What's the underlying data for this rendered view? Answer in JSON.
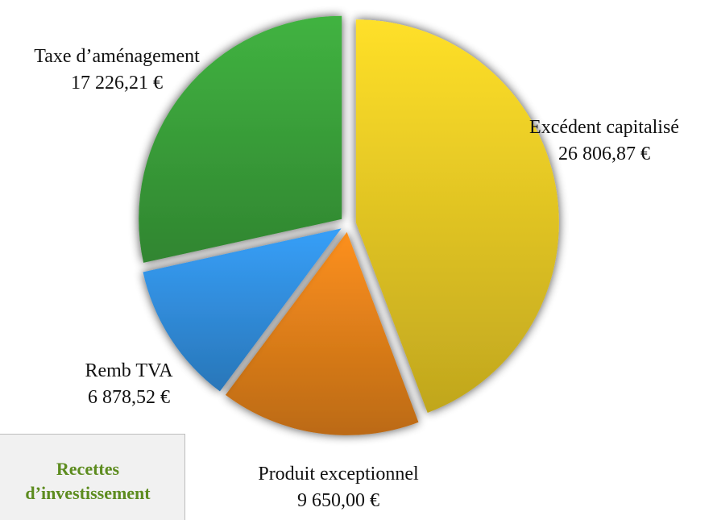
{
  "chart_data": {
    "type": "pie",
    "title": "Recettes d’investissement",
    "categories": [
      "Excédent capitalisé",
      "Produit exceptionnel",
      "Remb TVA",
      "Taxe d’aménagement"
    ],
    "values": [
      26806.87,
      9650.0,
      6878.52,
      17226.21
    ],
    "value_labels": [
      "26 806,87 €",
      "9 650,00 €",
      "6 878,52 €",
      "17 226,21 €"
    ],
    "colors": [
      "#f0cf26",
      "#ea851b",
      "#3393e6",
      "#3ca63c"
    ]
  }
}
